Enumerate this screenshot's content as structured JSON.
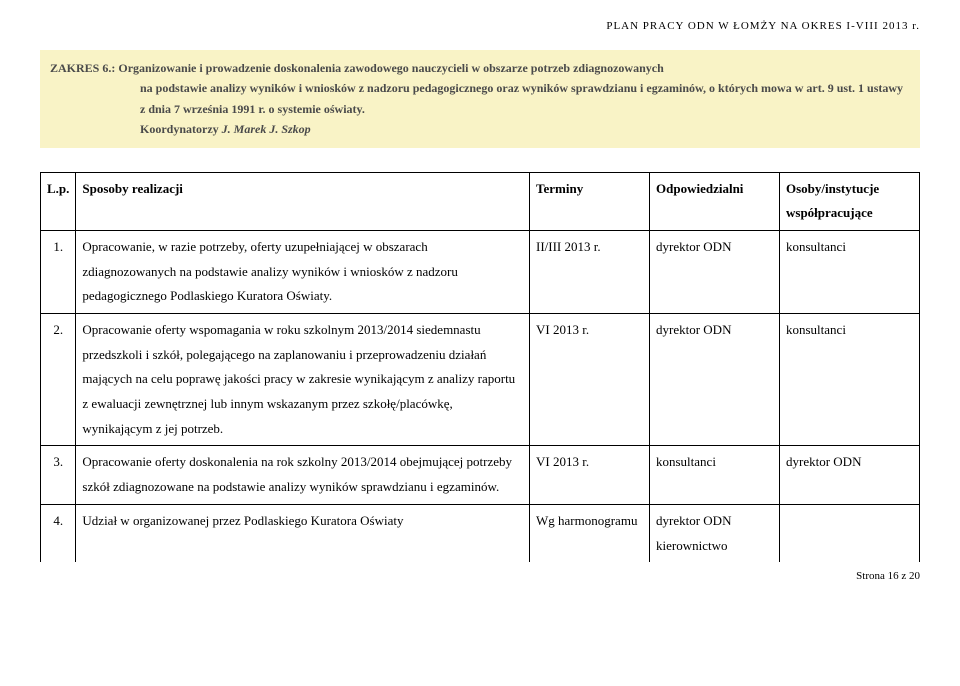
{
  "header": {
    "title": "PLAN PRACY ODN  W  ŁOMŻY NA OKRES I-VIII 2013 r."
  },
  "zakres": {
    "label": "ZAKRES 6.",
    "text_a": ": Organizowanie i prowadzenie doskonalenia zawodowego nauczycieli w obszarze potrzeb zdiagnozowanych",
    "text_b": "na podstawie analizy wyników i wniosków z nadzoru pedagogicznego oraz wyników sprawdzianu i egzaminów, o których mowa w art. 9 ust. 1 ustawy z dnia 7 września 1991 r. o systemie oświaty.",
    "coord_label": "Koordynatorzy",
    "coord_names": "J. Marek J. Szkop"
  },
  "table": {
    "headers": {
      "lp": "L.p.",
      "sposoby": "Sposoby realizacji",
      "terminy": "Terminy",
      "odp": "Odpowiedzialni",
      "osoby": "Osoby/instytucje współpracujące"
    },
    "rows": [
      {
        "lp": "1.",
        "sposoby": "Opracowanie, w razie potrzeby,  oferty uzupełniającej w obszarach zdiagnozowanych na podstawie analizy wyników i wniosków z nadzoru pedagogicznego Podlaskiego Kuratora Oświaty.",
        "terminy": "II/III 2013 r.",
        "odp": "dyrektor ODN",
        "osoby": "konsultanci"
      },
      {
        "lp": "2.",
        "sposoby": "Opracowanie oferty wspomagania w roku szkolnym 2013/2014 siedemnastu przedszkoli i szkół, polegającego na zaplanowaniu i przeprowadzeniu działań mających na celu poprawę jakości pracy w zakresie wynikającym z analizy raportu z ewaluacji zewnętrznej lub innym wskazanym przez szkołę/placówkę, wynikającym z jej potrzeb.",
        "terminy": "VI 2013 r.",
        "odp": "dyrektor ODN",
        "osoby": "konsultanci"
      },
      {
        "lp": "3.",
        "sposoby": "Opracowanie oferty doskonalenia na rok szkolny 2013/2014 obejmującej potrzeby szkół zdiagnozowane na podstawie analizy wyników sprawdzianu i egzaminów.",
        "terminy": "VI 2013 r.",
        "odp": "konsultanci",
        "osoby": "dyrektor ODN"
      },
      {
        "lp": "4.",
        "sposoby": "Udział w organizowanej przez Podlaskiego Kuratora Oświaty",
        "terminy": "Wg harmonogramu",
        "odp": "dyrektor ODN kierownictwo",
        "osoby": ""
      }
    ]
  },
  "footer": {
    "page": "Strona 16 z 20"
  },
  "colors": {
    "zakres_bg": "#f9f3c6",
    "text": "#000000",
    "border": "#000000"
  }
}
